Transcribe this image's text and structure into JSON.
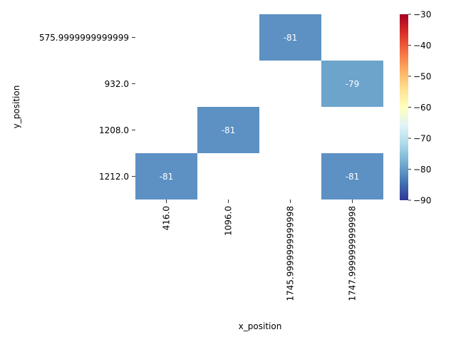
{
  "chart_data": {
    "type": "heatmap",
    "xlabel": "x_position",
    "ylabel": "y_position",
    "x_categories": [
      "416.0",
      "1096.0",
      "1745.9999999999998",
      "1747.9999999999998"
    ],
    "y_categories": [
      "575.9999999999999",
      "932.0",
      "1208.0",
      "1212.0"
    ],
    "cells": [
      {
        "x": "1745.9999999999998",
        "y": "575.9999999999999",
        "value": -81,
        "label": "-81"
      },
      {
        "x": "1747.9999999999998",
        "y": "932.0",
        "value": -79,
        "label": "-79"
      },
      {
        "x": "1096.0",
        "y": "1208.0",
        "value": -81,
        "label": "-81"
      },
      {
        "x": "416.0",
        "y": "1212.0",
        "value": -81,
        "label": "-81"
      },
      {
        "x": "1747.9999999999998",
        "y": "1212.0",
        "value": -81,
        "label": "-81"
      }
    ],
    "colorbar": {
      "colormap": "RdYlBu_r",
      "vmin": -90,
      "vmax": -30,
      "ticks": [
        -90,
        -80,
        -70,
        -60,
        -50,
        -40,
        -30
      ],
      "tick_labels": [
        "−90",
        "−80",
        "−70",
        "−60",
        "−50",
        "−40",
        "−30"
      ]
    },
    "grid": false
  }
}
